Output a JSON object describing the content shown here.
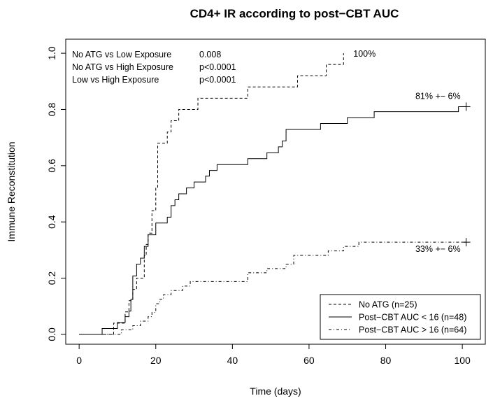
{
  "chart_data": {
    "type": "line",
    "title": "CD4+ IR according to post−CBT AUC",
    "xlabel": "Time (days)",
    "ylabel": "Immune Reconstitution",
    "xlim": [
      -3.5,
      106
    ],
    "ylim": [
      -0.035,
      1.05
    ],
    "x_ticks": [
      0,
      20,
      40,
      60,
      80,
      100
    ],
    "x_tick_labels": [
      "0",
      "20",
      "40",
      "60",
      "80",
      "100"
    ],
    "y_ticks": [
      0.0,
      0.2,
      0.4,
      0.6,
      0.8,
      1.0
    ],
    "y_tick_labels": [
      "0.0",
      "0.2",
      "0.4",
      "0.6",
      "0.8",
      "1.0"
    ],
    "grid": false,
    "legend_position": "bottom-right",
    "pvalue_table": [
      {
        "label": "No ATG vs Low Exposure",
        "value": "0.008"
      },
      {
        "label": "No ATG vs High Exposure",
        "value": "p<0.0001"
      },
      {
        "label": "Low vs High Exposure",
        "value": "p<0.0001"
      }
    ],
    "series": [
      {
        "name": "No ATG (n=25)",
        "line_style": "dashed",
        "end_label": "100%",
        "end_censor": false,
        "points": [
          [
            0,
            0
          ],
          [
            9,
            0
          ],
          [
            9,
            0.04
          ],
          [
            12,
            0.04
          ],
          [
            12,
            0.08
          ],
          [
            13,
            0.08
          ],
          [
            13,
            0.12
          ],
          [
            14,
            0.12
          ],
          [
            14,
            0.16
          ],
          [
            15,
            0.16
          ],
          [
            15,
            0.2
          ],
          [
            17,
            0.2
          ],
          [
            17,
            0.28
          ],
          [
            17.5,
            0.28
          ],
          [
            17.5,
            0.32
          ],
          [
            18,
            0.32
          ],
          [
            18,
            0.36
          ],
          [
            19,
            0.36
          ],
          [
            19,
            0.44
          ],
          [
            20,
            0.44
          ],
          [
            20,
            0.52
          ],
          [
            20.5,
            0.52
          ],
          [
            20.5,
            0.68
          ],
          [
            23,
            0.68
          ],
          [
            23,
            0.72
          ],
          [
            24,
            0.72
          ],
          [
            24,
            0.76
          ],
          [
            26,
            0.76
          ],
          [
            26,
            0.8
          ],
          [
            31,
            0.8
          ],
          [
            31,
            0.84
          ],
          [
            44,
            0.84
          ],
          [
            44,
            0.88
          ],
          [
            57,
            0.88
          ],
          [
            57,
            0.92
          ],
          [
            64.5,
            0.92
          ],
          [
            64.5,
            0.96
          ],
          [
            69,
            0.96
          ],
          [
            69,
            1.0
          ]
        ]
      },
      {
        "name": "Post−CBT AUC < 16 (n=48)",
        "line_style": "solid",
        "end_label": "81% +− 6%",
        "end_censor": true,
        "points": [
          [
            0,
            0
          ],
          [
            6,
            0
          ],
          [
            6,
            0.021
          ],
          [
            10,
            0.021
          ],
          [
            10,
            0.042
          ],
          [
            12,
            0.042
          ],
          [
            12,
            0.063
          ],
          [
            13,
            0.063
          ],
          [
            13,
            0.083
          ],
          [
            13.5,
            0.083
          ],
          [
            13.5,
            0.125
          ],
          [
            14,
            0.125
          ],
          [
            14,
            0.208
          ],
          [
            15,
            0.208
          ],
          [
            15,
            0.25
          ],
          [
            16,
            0.25
          ],
          [
            16,
            0.271
          ],
          [
            17,
            0.271
          ],
          [
            17,
            0.313
          ],
          [
            18,
            0.313
          ],
          [
            18,
            0.354
          ],
          [
            20,
            0.354
          ],
          [
            20,
            0.396
          ],
          [
            23,
            0.396
          ],
          [
            23,
            0.417
          ],
          [
            24,
            0.417
          ],
          [
            24,
            0.458
          ],
          [
            25,
            0.458
          ],
          [
            25,
            0.479
          ],
          [
            26,
            0.479
          ],
          [
            26,
            0.5
          ],
          [
            28,
            0.5
          ],
          [
            28,
            0.521
          ],
          [
            30,
            0.521
          ],
          [
            30,
            0.542
          ],
          [
            33,
            0.542
          ],
          [
            33,
            0.563
          ],
          [
            34,
            0.563
          ],
          [
            34,
            0.583
          ],
          [
            36,
            0.583
          ],
          [
            36,
            0.604
          ],
          [
            44,
            0.604
          ],
          [
            44,
            0.625
          ],
          [
            49,
            0.625
          ],
          [
            49,
            0.646
          ],
          [
            52,
            0.646
          ],
          [
            52,
            0.667
          ],
          [
            53,
            0.667
          ],
          [
            53,
            0.688
          ],
          [
            54,
            0.688
          ],
          [
            54,
            0.729
          ],
          [
            63,
            0.729
          ],
          [
            63,
            0.75
          ],
          [
            70,
            0.75
          ],
          [
            70,
            0.771
          ],
          [
            77,
            0.771
          ],
          [
            77,
            0.792
          ],
          [
            99,
            0.792
          ],
          [
            99,
            0.81
          ],
          [
            101,
            0.81
          ]
        ]
      },
      {
        "name": "Post−CBT AUC > 16 (n=64)",
        "line_style": "dashdot",
        "end_label": "33% +− 6%",
        "end_censor": true,
        "points": [
          [
            0,
            0
          ],
          [
            11,
            0
          ],
          [
            11,
            0.016
          ],
          [
            14,
            0.016
          ],
          [
            14,
            0.031
          ],
          [
            16,
            0.031
          ],
          [
            16,
            0.047
          ],
          [
            18,
            0.047
          ],
          [
            18,
            0.063
          ],
          [
            19,
            0.063
          ],
          [
            19,
            0.078
          ],
          [
            20,
            0.078
          ],
          [
            20,
            0.109
          ],
          [
            21,
            0.109
          ],
          [
            21,
            0.125
          ],
          [
            22,
            0.125
          ],
          [
            22,
            0.141
          ],
          [
            24,
            0.141
          ],
          [
            24,
            0.156
          ],
          [
            27,
            0.156
          ],
          [
            27,
            0.172
          ],
          [
            29,
            0.172
          ],
          [
            29,
            0.188
          ],
          [
            44,
            0.188
          ],
          [
            44,
            0.219
          ],
          [
            49,
            0.219
          ],
          [
            49,
            0.234
          ],
          [
            54,
            0.234
          ],
          [
            54,
            0.25
          ],
          [
            56,
            0.25
          ],
          [
            56,
            0.281
          ],
          [
            65,
            0.281
          ],
          [
            65,
            0.297
          ],
          [
            69,
            0.297
          ],
          [
            69,
            0.313
          ],
          [
            73,
            0.313
          ],
          [
            73,
            0.328
          ],
          [
            101,
            0.328
          ]
        ]
      }
    ]
  }
}
